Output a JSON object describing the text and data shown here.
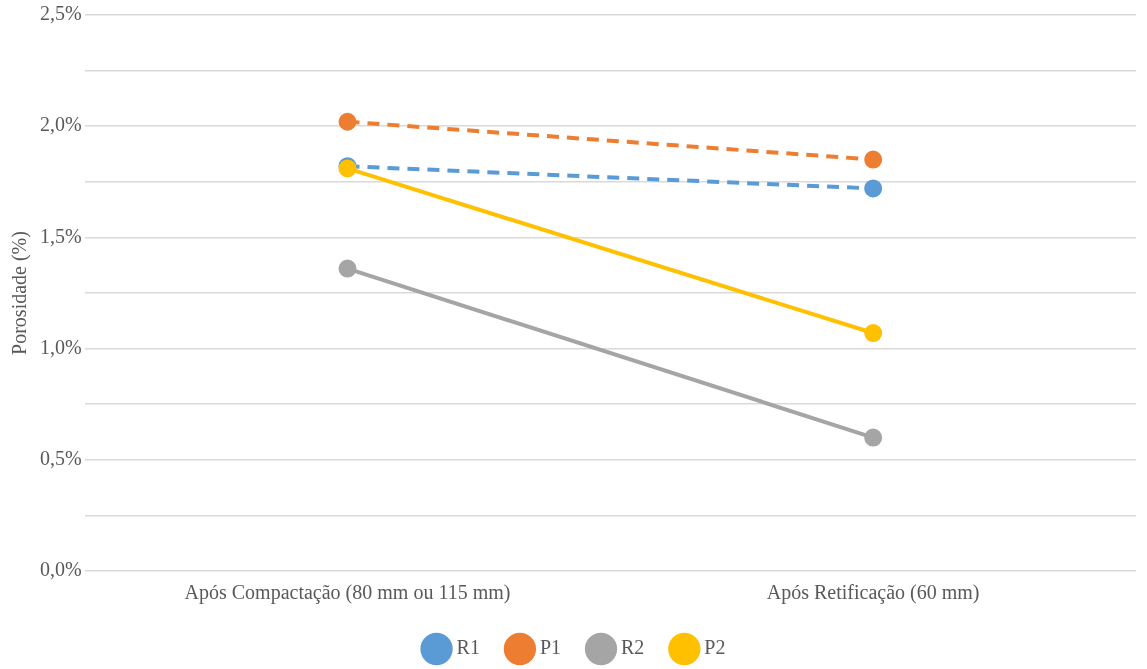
{
  "chart_data": {
    "type": "line",
    "ylabel": "Porosidade (%)",
    "categories": [
      "Após Compactação (80 mm ou 115 mm)",
      "Após Retificação (60 mm)"
    ],
    "series": [
      {
        "name": "R1",
        "color": "#5b9bd5",
        "values": [
          1.82,
          1.72
        ],
        "line_style": "dashed"
      },
      {
        "name": "P1",
        "color": "#ed7d31",
        "values": [
          2.02,
          1.85
        ],
        "line_style": "dashed"
      },
      {
        "name": "R2",
        "color": "#a5a5a5",
        "values": [
          1.36,
          0.6
        ],
        "line_style": "solid"
      },
      {
        "name": "P2",
        "color": "#ffc000",
        "values": [
          1.81,
          1.07
        ],
        "line_style": "solid"
      }
    ],
    "ylim": [
      0,
      2.5
    ],
    "yticks": [
      {
        "value": 0,
        "label": "0,0%"
      },
      {
        "value": 0.25,
        "label": null
      },
      {
        "value": 0.5,
        "label": "0,5%"
      },
      {
        "value": 0.75,
        "label": null
      },
      {
        "value": 1,
        "label": "1,0%"
      },
      {
        "value": 1.25,
        "label": null
      },
      {
        "value": 1.5,
        "label": "1,5%"
      },
      {
        "value": 1.75,
        "label": null
      },
      {
        "value": 2,
        "label": "2,0%"
      },
      {
        "value": 2.25,
        "label": null
      },
      {
        "value": 2.5,
        "label": "2,5%"
      }
    ],
    "grid": "y",
    "legend": "bottom",
    "marker": "circle"
  }
}
